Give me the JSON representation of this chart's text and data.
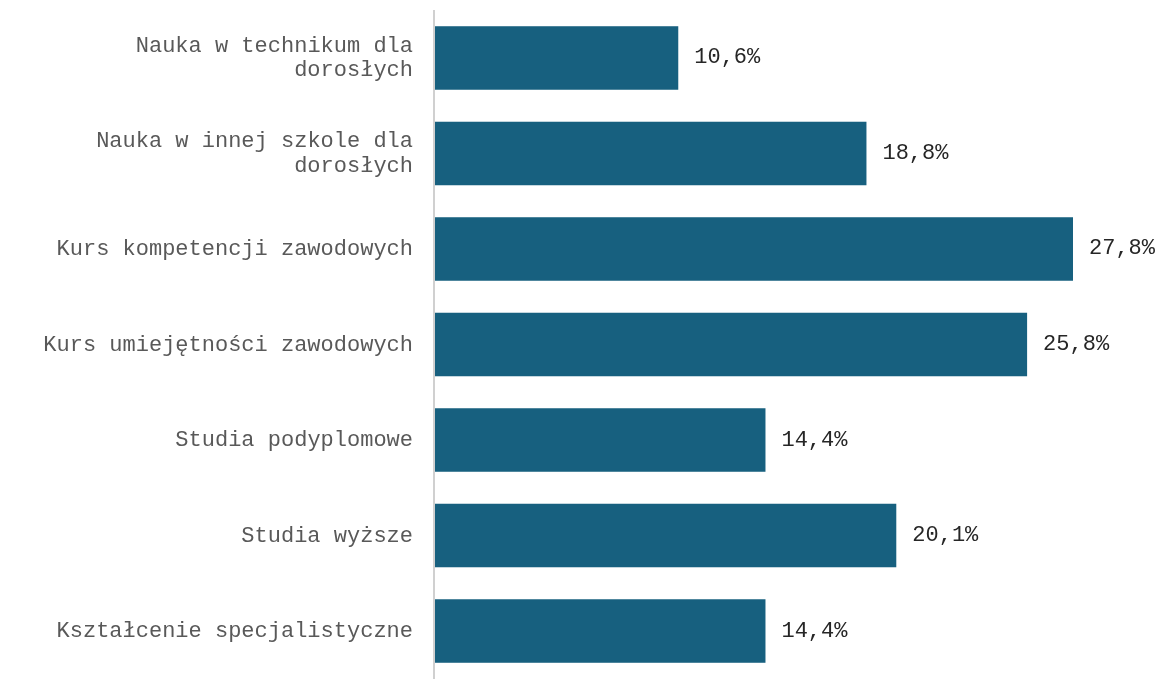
{
  "chart_data": {
    "type": "bar",
    "orientation": "horizontal",
    "categories": [
      "Nauka w technikum dla dorosłych",
      "Nauka w innej szkole dla dorosłych",
      "Kurs kompetencji zawodowych",
      "Kurs umiejętności zawodowych",
      "Studia podyplomowe",
      "Studia wyższe",
      "Kształcenie specjalistyczne"
    ],
    "values": [
      10.6,
      18.8,
      27.8,
      25.8,
      14.4,
      20.1,
      14.4
    ],
    "value_labels": [
      "10,6%",
      "18,8%",
      "27,8%",
      "25,8%",
      "14,4%",
      "20,1%",
      "14,4%"
    ],
    "color": "#17607f"
  }
}
